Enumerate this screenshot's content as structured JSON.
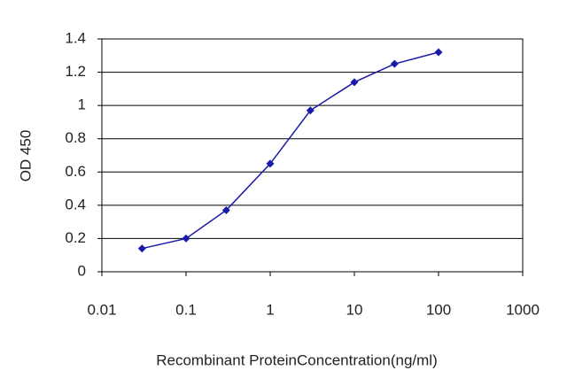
{
  "chart_data": {
    "type": "line",
    "x_label": "Recombinant ProteinConcentration(ng/ml)",
    "y_label": "OD 450",
    "x": [
      0.03,
      0.1,
      0.3,
      1,
      3,
      10,
      30,
      100
    ],
    "series": [
      {
        "color": "#1a1aa8",
        "values": [
          0.14,
          0.2,
          0.37,
          0.65,
          0.97,
          1.14,
          1.25,
          1.32
        ]
      }
    ],
    "xscale": "log",
    "xlim": [
      0.01,
      1000
    ],
    "xticks": [
      0.01,
      0.1,
      1,
      10,
      100,
      1000
    ],
    "ylim": [
      0,
      1.4
    ],
    "yticks": [
      0,
      0.2,
      0.4,
      0.6,
      0.8,
      1,
      1.2,
      1.4
    ],
    "grid": true
  }
}
